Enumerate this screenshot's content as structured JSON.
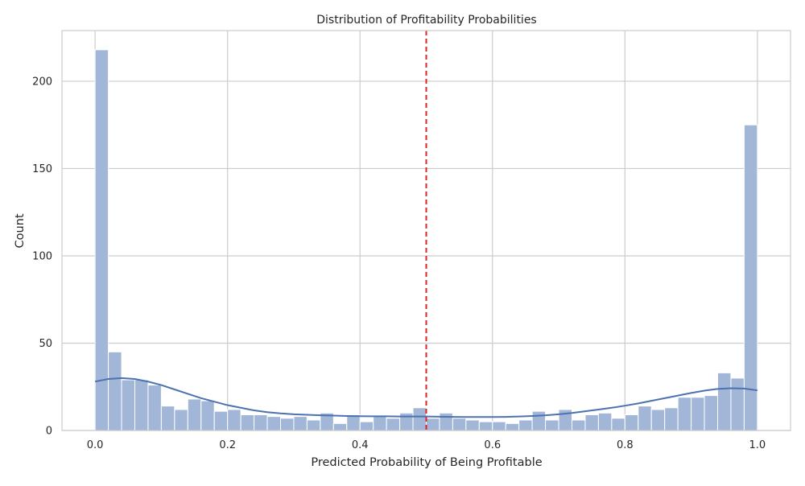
{
  "chart_data": {
    "type": "histogram",
    "title": "Distribution of Profitability Probabilities",
    "xlabel": "Predicted Probability of Being Profitable",
    "ylabel": "Count",
    "xlim": [
      -0.05,
      1.05
    ],
    "ylim": [
      0,
      229
    ],
    "x_ticks": [
      0.0,
      0.2,
      0.4,
      0.6,
      0.8,
      1.0
    ],
    "x_tick_labels": [
      "0.0",
      "0.2",
      "0.4",
      "0.6",
      "0.8",
      "1.0"
    ],
    "y_ticks": [
      0,
      50,
      100,
      150,
      200
    ],
    "y_tick_labels": [
      "0",
      "50",
      "100",
      "150",
      "200"
    ],
    "grid": true,
    "bins": {
      "start": 0.0,
      "width": 0.02,
      "counts": [
        218,
        45,
        29,
        29,
        26,
        14,
        12,
        18,
        17,
        11,
        12,
        9,
        9,
        8,
        7,
        8,
        6,
        10,
        4,
        9,
        5,
        8,
        7,
        10,
        13,
        7,
        10,
        7,
        6,
        5,
        5,
        4,
        6,
        11,
        6,
        12,
        6,
        9,
        10,
        7,
        9,
        14,
        12,
        13,
        19,
        19,
        20,
        33,
        30,
        175
      ]
    },
    "kde_curve": {
      "x": [
        0.0,
        0.02,
        0.04,
        0.06,
        0.08,
        0.1,
        0.12,
        0.14,
        0.16,
        0.18,
        0.2,
        0.22,
        0.24,
        0.26,
        0.28,
        0.3,
        0.32,
        0.34,
        0.36,
        0.38,
        0.4,
        0.42,
        0.44,
        0.46,
        0.48,
        0.5,
        0.52,
        0.54,
        0.56,
        0.58,
        0.6,
        0.62,
        0.64,
        0.66,
        0.68,
        0.7,
        0.72,
        0.74,
        0.76,
        0.78,
        0.8,
        0.82,
        0.84,
        0.86,
        0.88,
        0.9,
        0.92,
        0.94,
        0.96,
        0.98,
        1.0
      ],
      "y": [
        28,
        29.5,
        30,
        29.5,
        28,
        26,
        23.5,
        21,
        18.5,
        16.5,
        14.5,
        13,
        11.5,
        10.5,
        9.8,
        9.3,
        9,
        8.7,
        8.5,
        8.3,
        8.2,
        8.1,
        8.1,
        8,
        8,
        8,
        7.9,
        7.8,
        7.7,
        7.7,
        7.7,
        7.8,
        8,
        8.3,
        8.7,
        9.3,
        10,
        11,
        12,
        13,
        14.2,
        15.5,
        17,
        18.5,
        20,
        21.5,
        22.8,
        23.8,
        24.2,
        24,
        23
      ]
    },
    "threshold_line": {
      "x": 0.5,
      "color": "#d62728",
      "style": "dashed"
    },
    "colors": {
      "bar": "#a2b6d8",
      "bar_edge": "#ffffff",
      "kde": "#4c72b0",
      "grid": "#cccccc",
      "spine": "#cccccc"
    }
  }
}
